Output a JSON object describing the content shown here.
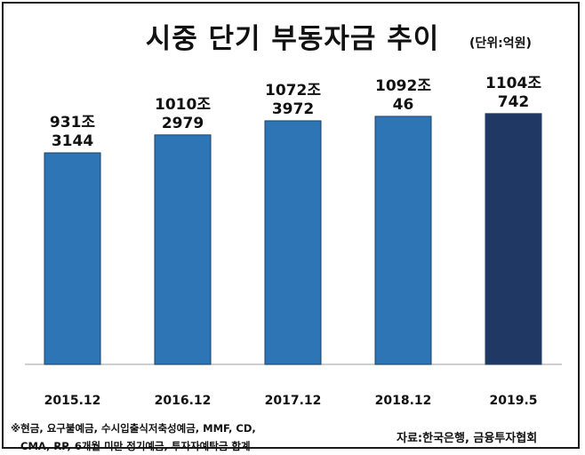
{
  "header": {
    "title": "시중 단기 부동자금 추이",
    "unit": "(단위:억원)"
  },
  "chart_data": {
    "type": "bar",
    "title": "시중 단기 부동자금 추이",
    "categories": [
      "2015.12",
      "2016.12",
      "2017.12",
      "2018.12",
      "2019.5"
    ],
    "values": [
      9313144,
      10102979,
      10723972,
      10920046,
      11040742
    ],
    "labels": [
      {
        "line1": "931조",
        "line2": "3144"
      },
      {
        "line1": "1010조",
        "line2": "2979"
      },
      {
        "line1": "1072조",
        "line2": "3972"
      },
      {
        "line1": "1092조",
        "line2": "46"
      },
      {
        "line1": "1104조",
        "line2": "742"
      }
    ],
    "colors": [
      "#2e75b6",
      "#2e75b6",
      "#2e75b6",
      "#2e75b6",
      "#203864"
    ],
    "ylim": [
      0,
      13500000
    ],
    "grid": false
  },
  "footer": {
    "note_line1": "※현금, 요구불예금, 수시입출식저축성예금, MMF, CD,",
    "note_line2": "CMA, RP, 6개월 미만 정기예금, 투자자예탁금 합계",
    "source": "자료:한국은행, 금융투자협회"
  }
}
